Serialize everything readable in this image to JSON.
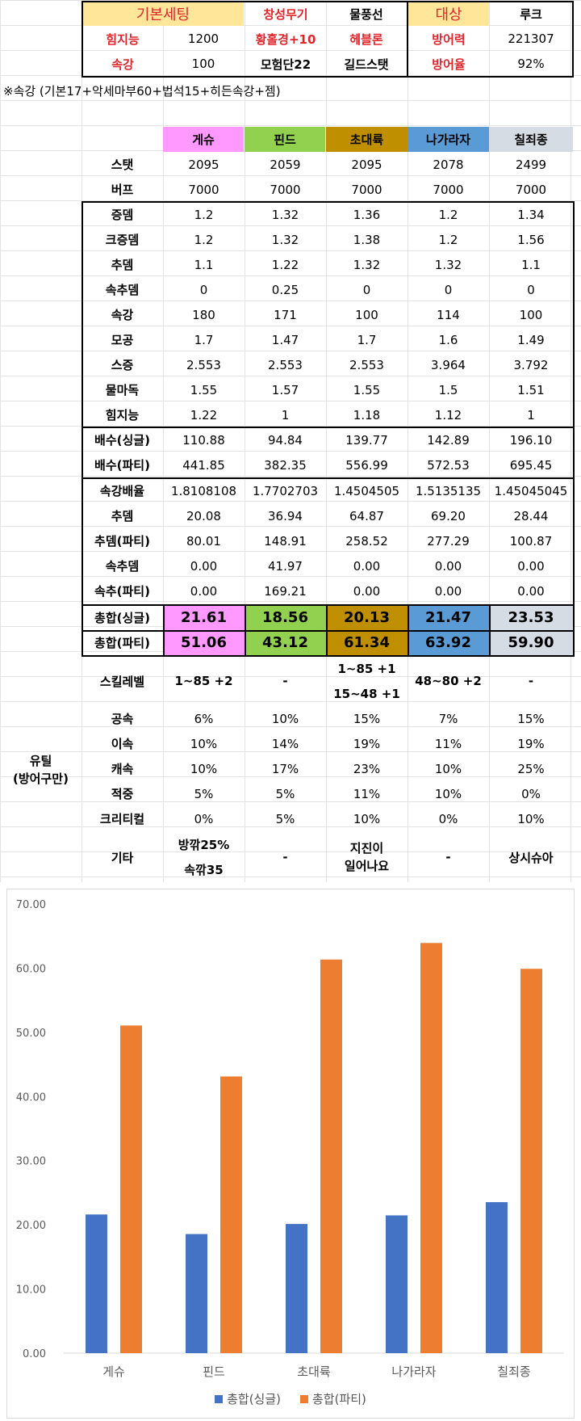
{
  "colors": {
    "geshu": "#ff99ff",
    "pind": "#92d050",
    "chodaeryuk": "#bf8f00",
    "nagaraja": "#5b9bd5",
    "chiljoejong": "#d6dce4",
    "red": "#e0252a",
    "header_gold": "#ffe699",
    "series1": "#4472c4",
    "series2": "#ed7d31"
  },
  "settings": {
    "r1": [
      "기본세팅",
      "창성무기",
      "물풍선",
      "대상",
      "루크"
    ],
    "r2": [
      "힘지능",
      "1200",
      "황홀경+10",
      "헤블론",
      "방어력",
      "221307"
    ],
    "r3": [
      "속강",
      "100",
      "모험단22",
      "길드스탯",
      "방어율",
      "92%"
    ],
    "note": "※속강 (기본17+악세마부60+법석15+히든속강+젬)"
  },
  "classes": [
    "게슈",
    "핀드",
    "초대륙",
    "나가라자",
    "칠죄종"
  ],
  "rows_a": [
    {
      "label": "스탯",
      "v": [
        "2095",
        "2059",
        "2095",
        "2078",
        "2499"
      ]
    },
    {
      "label": "버프",
      "v": [
        "7000",
        "7000",
        "7000",
        "7000",
        "7000"
      ]
    }
  ],
  "rows_b": [
    {
      "label": "증뎀",
      "v": [
        "1.2",
        "1.32",
        "1.36",
        "1.2",
        "1.34"
      ]
    },
    {
      "label": "크증뎀",
      "v": [
        "1.2",
        "1.32",
        "1.38",
        "1.2",
        "1.56"
      ]
    },
    {
      "label": "추뎀",
      "v": [
        "1.1",
        "1.22",
        "1.32",
        "1.32",
        "1.1"
      ]
    },
    {
      "label": "속추뎀",
      "v": [
        "0",
        "0.25",
        "0",
        "0",
        "0"
      ]
    },
    {
      "label": "속강",
      "v": [
        "180",
        "171",
        "100",
        "114",
        "100"
      ]
    },
    {
      "label": "모공",
      "v": [
        "1.7",
        "1.47",
        "1.7",
        "1.6",
        "1.49"
      ]
    },
    {
      "label": "스증",
      "v": [
        "2.553",
        "2.553",
        "2.553",
        "3.964",
        "3.792"
      ]
    },
    {
      "label": "물마독",
      "v": [
        "1.55",
        "1.57",
        "1.55",
        "1.5",
        "1.51"
      ]
    },
    {
      "label": "힘지능",
      "v": [
        "1.22",
        "1",
        "1.18",
        "1.12",
        "1"
      ]
    }
  ],
  "rows_c": [
    {
      "label": "배수(싱글)",
      "v": [
        "110.88",
        "94.84",
        "139.77",
        "142.89",
        "196.10"
      ]
    },
    {
      "label": "배수(파티)",
      "v": [
        "441.85",
        "382.35",
        "556.99",
        "572.53",
        "695.45"
      ]
    }
  ],
  "rows_d": [
    {
      "label": "속강배율",
      "v": [
        "1.8108108",
        "1.7702703",
        "1.4504505",
        "1.5135135",
        "1.45045045"
      ]
    },
    {
      "label": "추뎀",
      "v": [
        "20.08",
        "36.94",
        "64.87",
        "69.20",
        "28.44"
      ]
    },
    {
      "label": "추뎀(파티)",
      "v": [
        "80.01",
        "148.91",
        "258.52",
        "277.29",
        "100.87"
      ]
    },
    {
      "label": "속추뎀",
      "v": [
        "0.00",
        "41.97",
        "0.00",
        "0.00",
        "0.00"
      ]
    },
    {
      "label": "속추(파티)",
      "v": [
        "0.00",
        "169.21",
        "0.00",
        "0.00",
        "0.00"
      ]
    }
  ],
  "rows_e": [
    {
      "label": "총합(싱글)",
      "v": [
        "21.61",
        "18.56",
        "20.13",
        "21.47",
        "23.53"
      ]
    },
    {
      "label": "총합(파티)",
      "v": [
        "51.06",
        "43.12",
        "61.34",
        "63.92",
        "59.90"
      ]
    }
  ],
  "util": {
    "title_line1": "유틸",
    "title_line2": "(방어구만)",
    "skill_label": "스킬레벨",
    "skill": [
      "1~85 +2",
      "-",
      "1~85 +1",
      "15~48 +1",
      "48~80 +2",
      "-"
    ],
    "rows": [
      {
        "label": "공속",
        "v": [
          "6%",
          "10%",
          "15%",
          "7%",
          "15%"
        ]
      },
      {
        "label": "이속",
        "v": [
          "10%",
          "14%",
          "19%",
          "11%",
          "19%"
        ]
      },
      {
        "label": "캐속",
        "v": [
          "10%",
          "17%",
          "23%",
          "10%",
          "25%"
        ]
      },
      {
        "label": "적중",
        "v": [
          "5%",
          "5%",
          "11%",
          "10%",
          "0%"
        ]
      },
      {
        "label": "크리티컬",
        "v": [
          "0%",
          "5%",
          "10%",
          "0%",
          "10%"
        ]
      }
    ],
    "etc_label": "기타",
    "etc": [
      "방깎25%",
      "속깎35",
      "-",
      "지진이",
      "일어나요",
      "-",
      "상시슈아"
    ]
  },
  "chart_data": {
    "type": "bar",
    "categories": [
      "게슈",
      "핀드",
      "초대륙",
      "나가라자",
      "칠죄종"
    ],
    "series": [
      {
        "name": "총합(싱글)",
        "values": [
          21.61,
          18.56,
          20.13,
          21.47,
          23.53
        ]
      },
      {
        "name": "총합(파티)",
        "values": [
          51.06,
          43.12,
          61.34,
          63.92,
          59.9
        ]
      }
    ],
    "ylim": [
      0,
      70
    ],
    "yticks": [
      "0.00",
      "10.00",
      "20.00",
      "30.00",
      "40.00",
      "50.00",
      "60.00",
      "70.00"
    ],
    "grid": false,
    "legend": "bottom"
  }
}
